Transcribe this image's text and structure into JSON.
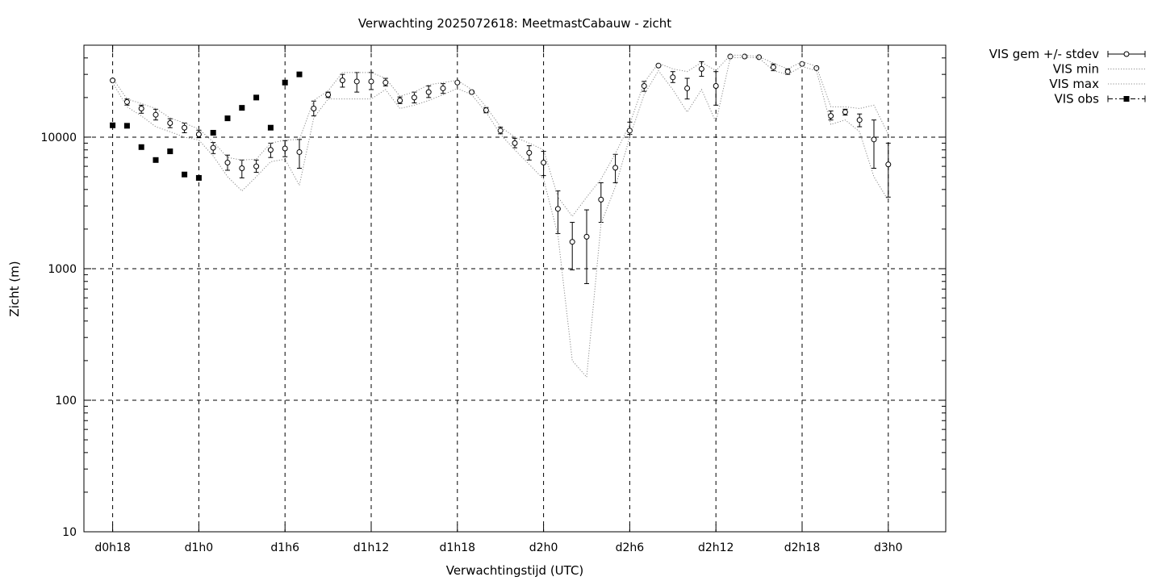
{
  "chart_data": {
    "type": "line",
    "title": "Verwachting 2025072618: MeetmastCabauw - zicht",
    "xlabel": "Verwachtingstijd (UTC)",
    "ylabel": "Zicht (m)",
    "yscale": "log",
    "ylim": [
      10,
      50000
    ],
    "xlim": [
      -2,
      58
    ],
    "grid": true,
    "legend_position": "outside-top-right",
    "x_ticks": [
      {
        "x": 0,
        "label": "d0h18"
      },
      {
        "x": 6,
        "label": "d1h0"
      },
      {
        "x": 12,
        "label": "d1h6"
      },
      {
        "x": 18,
        "label": "d1h12"
      },
      {
        "x": 24,
        "label": "d1h18"
      },
      {
        "x": 30,
        "label": "d2h0"
      },
      {
        "x": 36,
        "label": "d2h6"
      },
      {
        "x": 42,
        "label": "d2h12"
      },
      {
        "x": 48,
        "label": "d2h18"
      },
      {
        "x": 54,
        "label": "d3h0"
      }
    ],
    "y_ticks": [
      {
        "y": 10,
        "label": "10"
      },
      {
        "y": 100,
        "label": "100"
      },
      {
        "y": 1000,
        "label": "1000"
      },
      {
        "y": 10000,
        "label": "10000"
      }
    ],
    "series": [
      {
        "name": "VIS gem +/- stdev",
        "style": "points-errorbars",
        "x": [
          0,
          1,
          2,
          3,
          4,
          5,
          6,
          7,
          8,
          9,
          10,
          11,
          12,
          13,
          14,
          15,
          16,
          17,
          18,
          19,
          20,
          21,
          22,
          23,
          24,
          25,
          26,
          27,
          28,
          29,
          30,
          31,
          32,
          33,
          34,
          35,
          36,
          37,
          38,
          39,
          40,
          41,
          42,
          43,
          44,
          45,
          46,
          47,
          48,
          49,
          50,
          51,
          52,
          53,
          54
        ],
        "y": [
          27000,
          18500,
          16500,
          14800,
          12800,
          11800,
          10500,
          8300,
          6400,
          5800,
          6000,
          8000,
          8200,
          7700,
          16500,
          21000,
          27000,
          26500,
          26500,
          26000,
          19000,
          20000,
          22000,
          23500,
          26000,
          22000,
          16000,
          11200,
          9000,
          7600,
          6400,
          2850,
          1600,
          1750,
          3350,
          5850,
          11200,
          24500,
          35000,
          28500,
          23500,
          33000,
          24500,
          41000,
          41000,
          40500,
          34000,
          31500,
          36000,
          33500,
          14500,
          15500,
          13500,
          9600,
          6200
        ],
        "ylow": [
          null,
          17500,
          15200,
          13500,
          11800,
          10800,
          9900,
          7500,
          5600,
          4900,
          5400,
          7000,
          7100,
          5800,
          14500,
          20000,
          24000,
          22000,
          23000,
          24500,
          18000,
          18200,
          20000,
          21500,
          null,
          null,
          15300,
          10600,
          8300,
          6700,
          5100,
          1850,
          980,
          770,
          2250,
          4500,
          10500,
          22300,
          null,
          26000,
          19500,
          29000,
          17500,
          null,
          null,
          null,
          32000,
          30000,
          null,
          null,
          13500,
          14700,
          12000,
          5800,
          3500
        ],
        "yhigh": [
          null,
          19500,
          17500,
          16300,
          13800,
          12800,
          11300,
          9100,
          7300,
          6700,
          6700,
          9000,
          9400,
          9600,
          18800,
          22000,
          30000,
          31000,
          31000,
          28000,
          20200,
          22000,
          24500,
          25500,
          null,
          null,
          16800,
          11900,
          9800,
          8600,
          7800,
          3900,
          2250,
          2800,
          4500,
          7400,
          13000,
          26500,
          null,
          31500,
          28000,
          37500,
          31500,
          null,
          null,
          null,
          36000,
          33000,
          null,
          null,
          15800,
          16300,
          15000,
          13500,
          9000
        ]
      },
      {
        "name": "VIS min",
        "style": "dotted-line",
        "x": [
          0,
          1,
          2,
          3,
          4,
          5,
          6,
          7,
          8,
          9,
          10,
          11,
          12,
          13,
          14,
          15,
          16,
          17,
          18,
          19,
          20,
          21,
          22,
          23,
          24,
          25,
          26,
          27,
          28,
          29,
          30,
          31,
          32,
          33,
          34,
          35,
          36,
          37,
          38,
          39,
          40,
          41,
          42,
          43,
          44,
          45,
          46,
          47,
          48,
          49,
          50,
          51,
          52,
          53,
          54
        ],
        "y": [
          26000,
          17000,
          14500,
          12000,
          11000,
          10000,
          9500,
          7200,
          5000,
          3900,
          5000,
          6500,
          6800,
          4300,
          14000,
          19500,
          19500,
          19500,
          19500,
          23000,
          16500,
          17500,
          19000,
          21000,
          23500,
          21000,
          15500,
          10500,
          8000,
          6200,
          4800,
          1800,
          200,
          150,
          2200,
          4200,
          10000,
          21000,
          32000,
          23000,
          15500,
          23000,
          13000,
          40000,
          40500,
          40000,
          32000,
          30000,
          34500,
          32000,
          12500,
          13500,
          11000,
          5000,
          3300
        ]
      },
      {
        "name": "VIS max",
        "style": "dotted-line",
        "x": [
          0,
          1,
          2,
          3,
          4,
          5,
          6,
          7,
          8,
          9,
          10,
          11,
          12,
          13,
          14,
          15,
          16,
          17,
          18,
          19,
          20,
          21,
          22,
          23,
          24,
          25,
          26,
          27,
          28,
          29,
          30,
          31,
          32,
          33,
          34,
          35,
          36,
          37,
          38,
          39,
          40,
          41,
          42,
          43,
          44,
          45,
          46,
          47,
          48,
          49,
          50,
          51,
          52,
          53,
          54
        ],
        "y": [
          28000,
          19500,
          18000,
          16500,
          14000,
          12800,
          11500,
          9200,
          7000,
          6700,
          6800,
          9000,
          9500,
          9600,
          19000,
          22500,
          31000,
          31000,
          31000,
          28000,
          20500,
          22000,
          25000,
          26000,
          27000,
          23000,
          17000,
          12000,
          10000,
          9000,
          8000,
          3500,
          2500,
          3500,
          4800,
          7500,
          12500,
          26000,
          36500,
          33000,
          31500,
          37000,
          32000,
          42000,
          42000,
          41000,
          36500,
          33000,
          37500,
          34500,
          17000,
          17000,
          16500,
          17500,
          10500
        ]
      },
      {
        "name": "VIS obs",
        "style": "filled-squares",
        "x": [
          0,
          1,
          2,
          3,
          4,
          5,
          6,
          7,
          8,
          9,
          10,
          11,
          12,
          13
        ],
        "y": [
          12300,
          12200,
          8400,
          6700,
          7800,
          5200,
          4900,
          10800,
          13900,
          16700,
          20000,
          11800,
          26000,
          30000
        ]
      }
    ]
  }
}
